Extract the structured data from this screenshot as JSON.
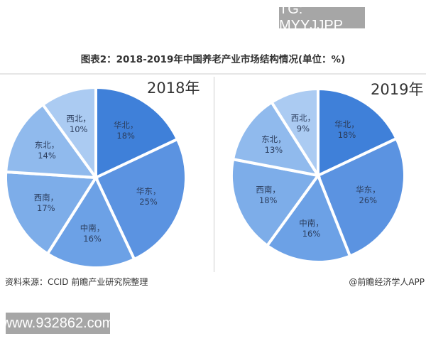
{
  "watermark_top": "TG: MYYJJPP",
  "watermark_bottom": "www.932862.com",
  "title": "图表2：2018-2019年中国养老产业市场结构情况(单位：%)",
  "source": "资料来源：CCID  前瞻产业研究院整理",
  "credit": "@前瞻经济学人APP",
  "colors": {
    "华北": "#3f80d9",
    "华东": "#5b93e1",
    "中南": "#6ca1e6",
    "西南": "#7dade9",
    "东北": "#90baed",
    "西北": "#abcbf2"
  },
  "charts": [
    {
      "year_label": "2018年"
    },
    {
      "year_label": "2019年"
    }
  ],
  "chart_data": [
    {
      "type": "pie",
      "title": "2018年",
      "categories": [
        "华北",
        "华东",
        "中南",
        "西南",
        "东北",
        "西北"
      ],
      "values": [
        18,
        25,
        16,
        17,
        14,
        10
      ],
      "labels": [
        "华北，18%",
        "华东，25%",
        "中南，16%",
        "西南，17%",
        "东北，14%",
        "西北，10%"
      ],
      "unit": "%"
    },
    {
      "type": "pie",
      "title": "2019年",
      "categories": [
        "华北",
        "华东",
        "中南",
        "西南",
        "东北",
        "西北"
      ],
      "values": [
        18,
        26,
        16,
        18,
        13,
        9
      ],
      "labels": [
        "华北，18%",
        "华东，26%",
        "中南，16%",
        "西南，18%",
        "东北，13%",
        "西北，9%"
      ],
      "unit": "%"
    }
  ]
}
